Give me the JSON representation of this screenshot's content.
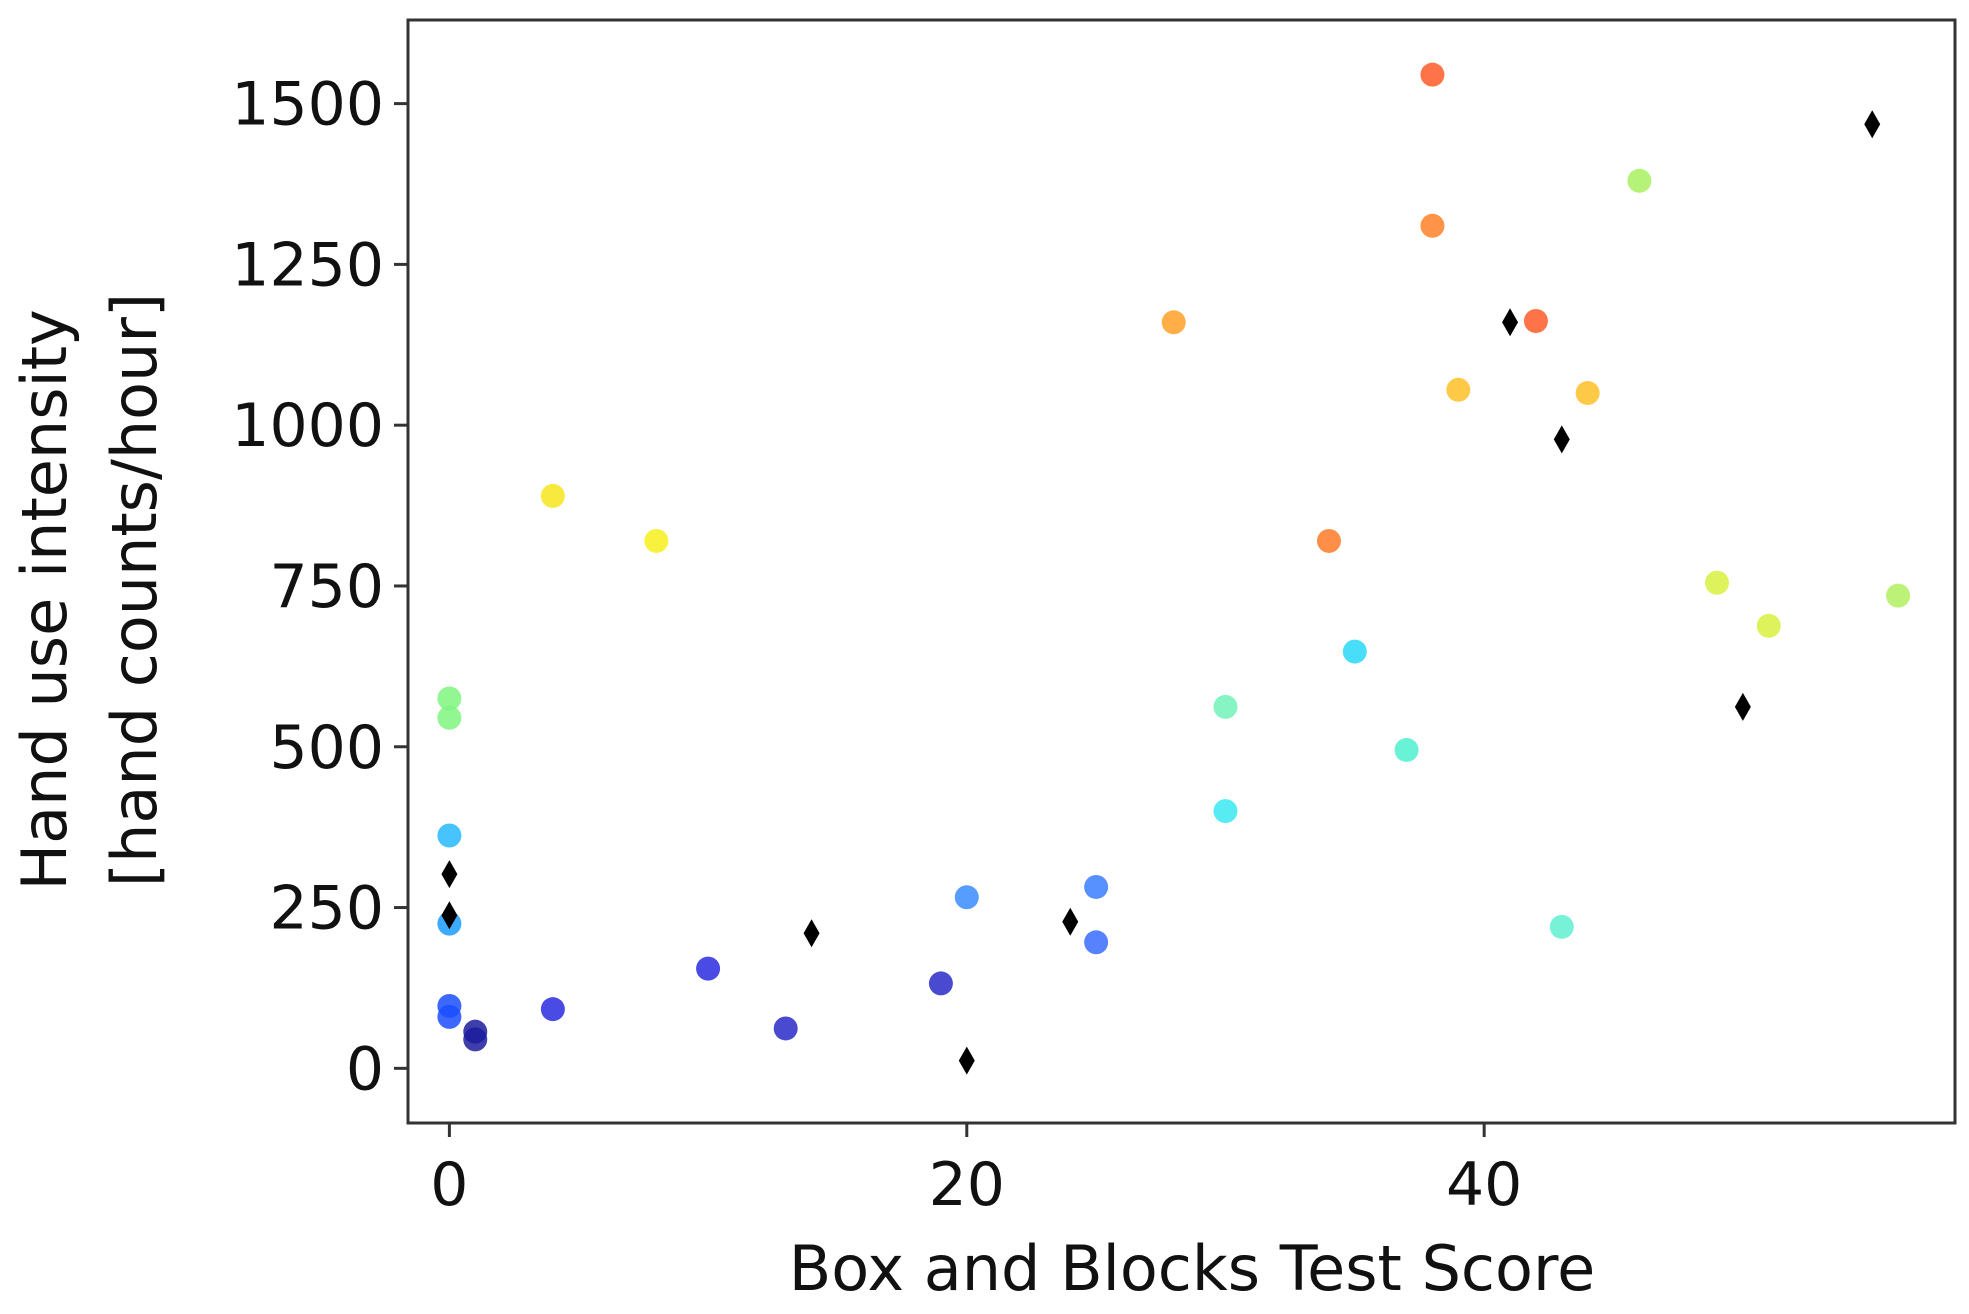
{
  "chart_data": {
    "type": "scatter",
    "xlabel": "Box and Blocks Test Score",
    "ylabel_lines": [
      "Hand use intensity",
      "[hand counts/hour]"
    ],
    "xlim": [
      -1.6,
      58.2
    ],
    "ylim": [
      -85,
      1630
    ],
    "xticks": [
      0,
      20,
      40
    ],
    "yticks": [
      0,
      250,
      500,
      750,
      1000,
      1250,
      1500
    ],
    "grid": false,
    "legend": "none",
    "series": [
      {
        "marker": "circle",
        "color_scale": "jet",
        "points": [
          {
            "x": 0,
            "y": 575,
            "color": "#7ff57f"
          },
          {
            "x": 0,
            "y": 545,
            "color": "#7ff57f"
          },
          {
            "x": 0,
            "y": 362,
            "color": "#27b8ff"
          },
          {
            "x": 0,
            "y": 225,
            "color": "#1a9cff"
          },
          {
            "x": 0,
            "y": 97,
            "color": "#1a4dff"
          },
          {
            "x": 0,
            "y": 80,
            "color": "#1a4dff"
          },
          {
            "x": 1,
            "y": 57,
            "color": "#1c1c9e"
          },
          {
            "x": 1,
            "y": 45,
            "color": "#1c1c9e"
          },
          {
            "x": 4,
            "y": 890,
            "color": "#f7e51c"
          },
          {
            "x": 4,
            "y": 92,
            "color": "#2a2ae0"
          },
          {
            "x": 8,
            "y": 820,
            "color": "#f7f01c"
          },
          {
            "x": 10,
            "y": 155,
            "color": "#2a2ae0"
          },
          {
            "x": 13,
            "y": 62,
            "color": "#2a2ac8"
          },
          {
            "x": 19,
            "y": 132,
            "color": "#2a2ac8"
          },
          {
            "x": 20,
            "y": 266,
            "color": "#3a8cff"
          },
          {
            "x": 25,
            "y": 282,
            "color": "#3a7cff"
          },
          {
            "x": 25,
            "y": 196,
            "color": "#3a6cff"
          },
          {
            "x": 28,
            "y": 1160,
            "color": "#ffa028"
          },
          {
            "x": 30,
            "y": 562,
            "color": "#72f2b8"
          },
          {
            "x": 30,
            "y": 400,
            "color": "#3ae8f0"
          },
          {
            "x": 34,
            "y": 820,
            "color": "#ff7a28"
          },
          {
            "x": 35,
            "y": 648,
            "color": "#28d8f8"
          },
          {
            "x": 37,
            "y": 495,
            "color": "#50f0d0"
          },
          {
            "x": 38,
            "y": 1545,
            "color": "#ff5a28"
          },
          {
            "x": 38,
            "y": 1310,
            "color": "#ff8028"
          },
          {
            "x": 39,
            "y": 1055,
            "color": "#ffc028"
          },
          {
            "x": 42,
            "y": 1162,
            "color": "#ff5a28"
          },
          {
            "x": 43,
            "y": 220,
            "color": "#60f0d0"
          },
          {
            "x": 44,
            "y": 1050,
            "color": "#ffc028"
          },
          {
            "x": 46,
            "y": 1380,
            "color": "#a8f060"
          },
          {
            "x": 49,
            "y": 755,
            "color": "#d8f040"
          },
          {
            "x": 51,
            "y": 688,
            "color": "#d8f040"
          },
          {
            "x": 56,
            "y": 735,
            "color": "#b0f060"
          }
        ]
      },
      {
        "marker": "thin_diamond",
        "color": "#000000",
        "points": [
          {
            "x": 0,
            "y": 302
          },
          {
            "x": 0,
            "y": 238
          },
          {
            "x": 14,
            "y": 210
          },
          {
            "x": 20,
            "y": 12
          },
          {
            "x": 24,
            "y": 228
          },
          {
            "x": 41,
            "y": 1160
          },
          {
            "x": 43,
            "y": 978
          },
          {
            "x": 50,
            "y": 562
          },
          {
            "x": 55,
            "y": 1468
          }
        ]
      }
    ]
  }
}
